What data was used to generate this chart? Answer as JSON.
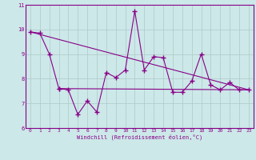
{
  "title": "",
  "xlabel": "Windchill (Refroidissement éolien,°C)",
  "ylabel": "",
  "background_color": "#cce8e8",
  "line_color": "#880088",
  "grid_color": "#b0c8c8",
  "xlim": [
    -0.5,
    23.5
  ],
  "ylim": [
    6,
    11
  ],
  "yticks": [
    6,
    7,
    8,
    9,
    10,
    11
  ],
  "xticks": [
    0,
    1,
    2,
    3,
    4,
    5,
    6,
    7,
    8,
    9,
    10,
    11,
    12,
    13,
    14,
    15,
    16,
    17,
    18,
    19,
    20,
    21,
    22,
    23
  ],
  "series1_x": [
    0,
    1,
    2,
    3
  ],
  "series1_y": [
    9.9,
    9.85,
    9.0,
    7.6
  ],
  "series2_x": [
    3,
    4,
    5,
    6,
    7,
    8,
    9,
    10,
    11,
    12,
    13,
    14,
    15,
    16,
    17,
    18,
    19,
    20,
    21,
    22,
    23
  ],
  "series2_y": [
    7.6,
    7.55,
    6.55,
    7.1,
    6.65,
    8.25,
    8.05,
    8.35,
    10.75,
    8.35,
    8.9,
    8.85,
    7.45,
    7.45,
    7.9,
    9.0,
    7.75,
    7.55,
    7.85,
    7.55,
    7.55
  ],
  "trend1_x": [
    0,
    23
  ],
  "trend1_y": [
    9.9,
    7.55
  ],
  "trend2_x": [
    3,
    23
  ],
  "trend2_y": [
    7.6,
    7.55
  ],
  "marker_size": 4,
  "line_width": 0.8
}
